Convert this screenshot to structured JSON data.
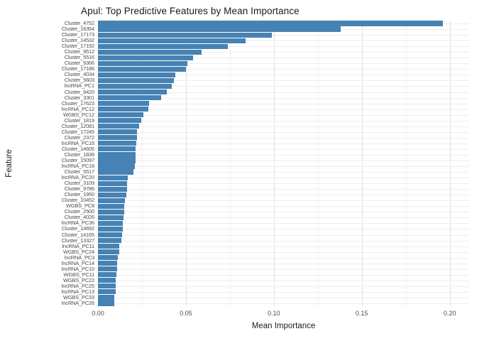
{
  "chart_data": {
    "type": "bar",
    "orientation": "horizontal",
    "title": "Apul: Top Predictive Features by Mean Importance",
    "xlabel": "Mean Importance",
    "ylabel": "Feature",
    "xlim": [
      0,
      0.2
    ],
    "x_tick_labels": [
      "0.00",
      "0.05",
      "0.10",
      "0.15",
      "0.20"
    ],
    "x_tick_values": [
      0,
      0.05,
      0.1,
      0.15,
      0.2
    ],
    "minor_grid_step": 0.025,
    "grid": "on",
    "legend": "none",
    "bar_color": "#4682B4",
    "categories": [
      "Cluster_4752",
      "Cluster_16354",
      "Cluster_17173",
      "Cluster_14532",
      "Cluster_17192",
      "Cluster_9512",
      "Cluster_5516",
      "Cluster_9366",
      "Cluster_17186",
      "Cluster_4034",
      "Cluster_5603",
      "lncRNA_PC1",
      "Cluster_9420",
      "Cluster_3301",
      "Cluster_17623",
      "lncRNA_PC12",
      "WGBS_PC12",
      "Cluster_1819",
      "Cluster_12081",
      "Cluster_17245",
      "Cluster_2372",
      "lncRNA_PC16",
      "Cluster_14605",
      "Cluster_1836",
      "Cluster_15097",
      "lncRNA_PC18",
      "Cluster_5517",
      "lncRNA_PC20",
      "Cluster_3109",
      "Cluster_9786",
      "Cluster_1950",
      "Cluster_10452",
      "WGBS_PC8",
      "Cluster_2500",
      "Cluster_4026",
      "lncRNA_PC36",
      "Cluster_14692",
      "Cluster_14165",
      "Cluster_13327",
      "lncRNA_PC11",
      "WGBS_PC24",
      "lncRNA_PC3",
      "lncRNA_PC14",
      "lncRNA_PC10",
      "WGBS_PC11",
      "WGBS_PC22",
      "lncRNA_PC25",
      "lncRNA_PC13",
      "WGBS_PC33",
      "lncRNA_PC26"
    ],
    "values": [
      0.196,
      0.138,
      0.099,
      0.084,
      0.074,
      0.059,
      0.054,
      0.051,
      0.05,
      0.044,
      0.043,
      0.042,
      0.039,
      0.036,
      0.029,
      0.0285,
      0.026,
      0.0245,
      0.0234,
      0.0222,
      0.022,
      0.0216,
      0.0215,
      0.0214,
      0.0213,
      0.0208,
      0.02,
      0.0168,
      0.0167,
      0.0166,
      0.016,
      0.0155,
      0.0151,
      0.015,
      0.0144,
      0.0141,
      0.014,
      0.0138,
      0.0133,
      0.0122,
      0.0121,
      0.0114,
      0.011,
      0.0107,
      0.0103,
      0.0102,
      0.0101,
      0.01,
      0.0093,
      0.0092
    ]
  },
  "colors": {
    "bar": "#4682B4",
    "grid_major": "#e2e2e2",
    "grid_minor": "#f0f0f0",
    "axis_text": "#4d4d4d",
    "title_text": "#1a1a1a",
    "background": "#ffffff"
  }
}
